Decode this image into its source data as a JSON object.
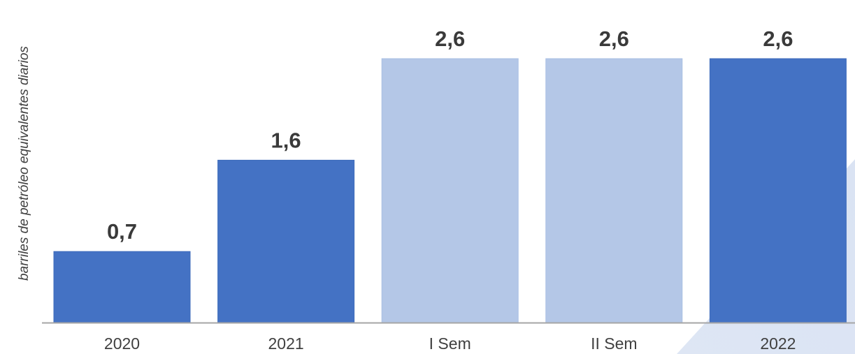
{
  "chart_data": {
    "type": "bar",
    "categories": [
      "2020",
      "2021",
      "I Sem",
      "II Sem",
      "2022"
    ],
    "values": [
      0.7,
      1.6,
      2.6,
      2.6,
      2.6
    ],
    "data_labels": [
      "0,7",
      "1,6",
      "2,6",
      "2,6",
      "2,6"
    ],
    "ylabel": "barriles de petróleo equivalentes diarios",
    "ylim": [
      0,
      2.75
    ],
    "grid": false,
    "bar_colors": [
      "#4472c4",
      "#4472c4",
      "#b4c7e7",
      "#b4c7e7",
      "#4472c4"
    ],
    "axis_color": "#a6a6a6",
    "accent_color": "#dae3f3"
  }
}
